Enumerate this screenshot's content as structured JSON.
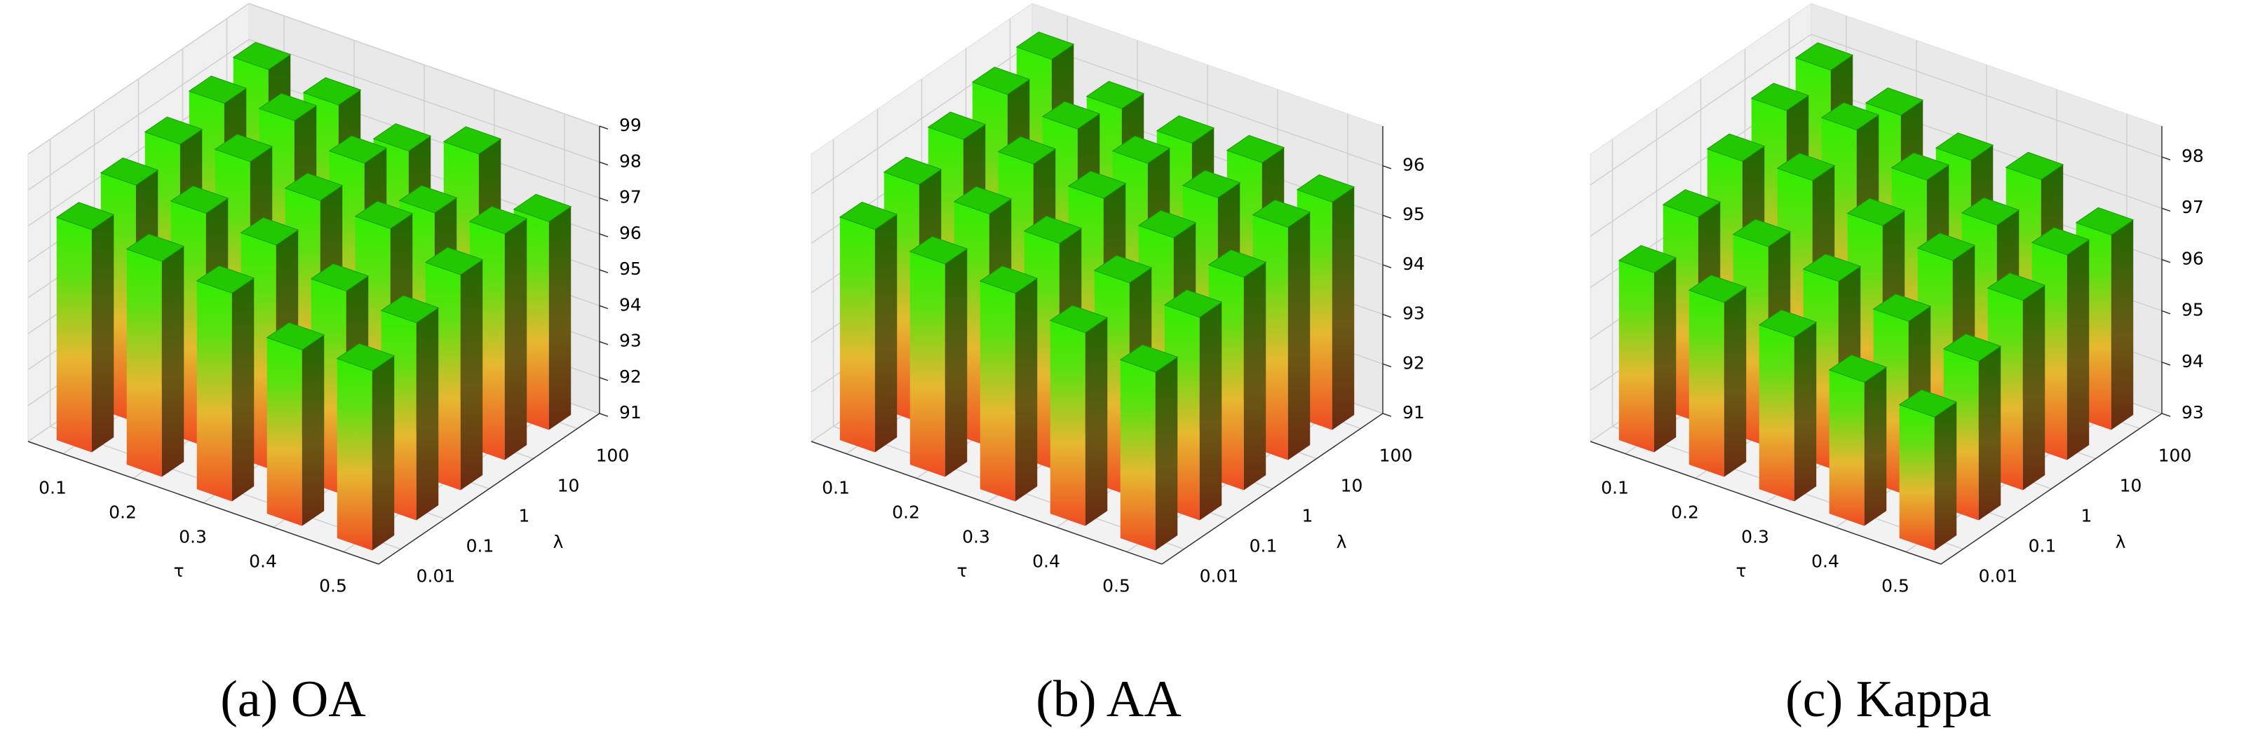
{
  "chart_data": [
    {
      "type": "bar3d",
      "title": "(a) OA",
      "x_label": "τ",
      "y_label": "λ",
      "x_categories": [
        "0.1",
        "0.2",
        "0.3",
        "0.4",
        "0.5"
      ],
      "y_categories": [
        "0.01",
        "0.1",
        "1",
        "10",
        "100"
      ],
      "values": [
        [
          97.2,
          97.6,
          97.9,
          98.2,
          98.3
        ],
        [
          97.0,
          97.5,
          98.1,
          98.4,
          98.0
        ],
        [
          96.8,
          97.3,
          97.7,
          97.9,
          97.4
        ],
        [
          95.9,
          96.7,
          97.6,
          97.2,
          98.0
        ],
        [
          96.0,
          96.5,
          97.0,
          97.3,
          96.8
        ]
      ],
      "zlim": [
        91,
        99
      ],
      "zticks": [
        91,
        92,
        93,
        94,
        95,
        96,
        97,
        98,
        99
      ],
      "grid": true
    },
    {
      "type": "bar3d",
      "title": "(b) AA",
      "x_label": "τ",
      "y_label": "λ",
      "x_categories": [
        "0.1",
        "0.2",
        "0.3",
        "0.4",
        "0.5"
      ],
      "y_categories": [
        "0.01",
        "0.1",
        "1",
        "10",
        "100"
      ],
      "values": [
        [
          95.5,
          95.8,
          96.1,
          96.4,
          96.5
        ],
        [
          95.3,
          95.7,
          96.1,
          96.2,
          96.0
        ],
        [
          95.2,
          95.6,
          95.9,
          96.0,
          95.8
        ],
        [
          94.9,
          95.3,
          95.6,
          95.8,
          95.9
        ],
        [
          94.6,
          95.1,
          95.3,
          95.7,
          95.6
        ]
      ],
      "zlim": [
        91,
        96.8
      ],
      "zticks": [
        91,
        92,
        93,
        94,
        95,
        96
      ],
      "grid": true
    },
    {
      "type": "bar3d",
      "title": "(c) Kappa",
      "x_label": "τ",
      "y_label": "λ",
      "x_categories": [
        "0.1",
        "0.2",
        "0.3",
        "0.4",
        "0.5"
      ],
      "y_categories": [
        "0.01",
        "0.1",
        "1",
        "10",
        "100"
      ],
      "values": [
        [
          96.5,
          97.0,
          97.5,
          97.9,
          98.1
        ],
        [
          96.4,
          96.9,
          97.6,
          98.0,
          97.7
        ],
        [
          96.2,
          96.7,
          97.2,
          97.5,
          97.3
        ],
        [
          95.8,
          96.4,
          97.0,
          97.1,
          97.4
        ],
        [
          95.6,
          96.1,
          96.7,
          97.0,
          96.8
        ]
      ],
      "zlim": [
        93,
        98.6
      ],
      "zticks": [
        93,
        94,
        95,
        96,
        97,
        98
      ],
      "grid": true
    }
  ]
}
